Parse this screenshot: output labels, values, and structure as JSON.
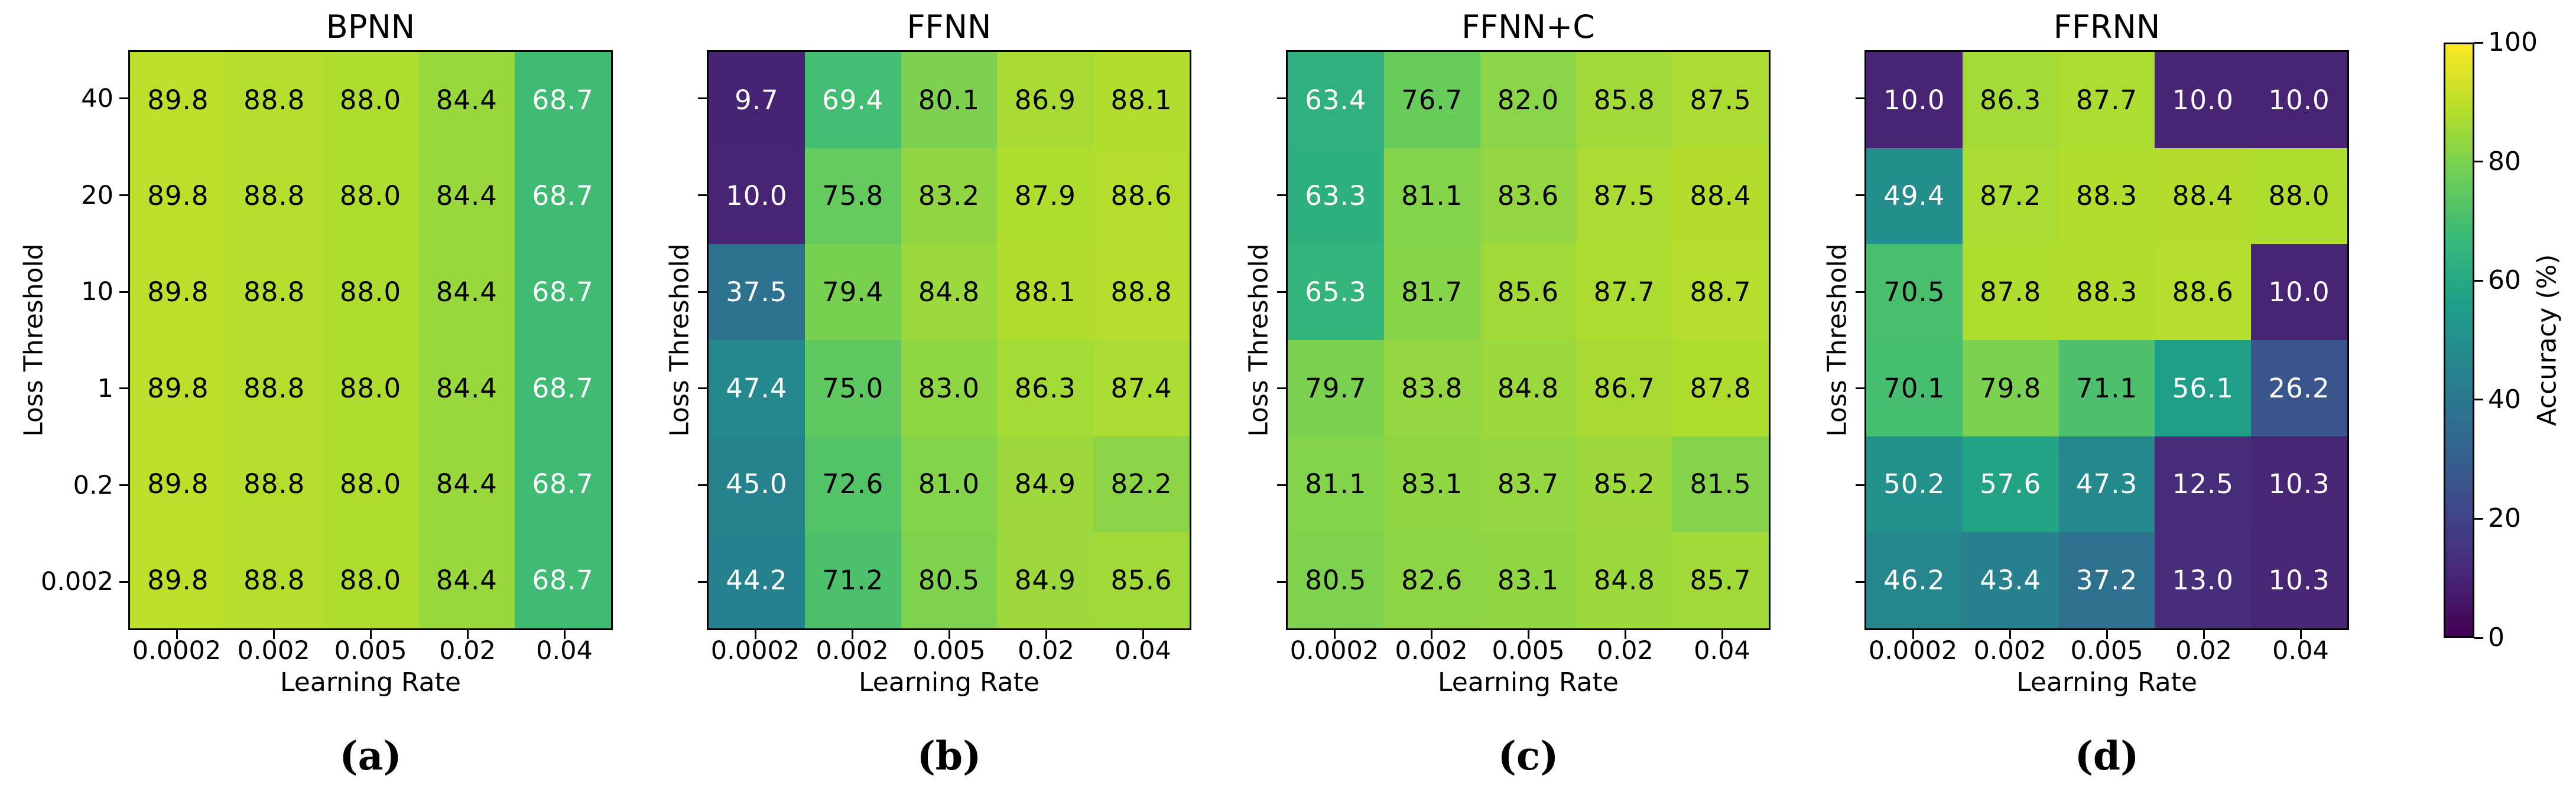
{
  "figure": {
    "x_axis_label": "Learning Rate",
    "y_axis_label": "Loss Threshold",
    "x_tick_labels": [
      "0.0002",
      "0.002",
      "0.005",
      "0.02",
      "0.04"
    ],
    "y_tick_labels": [
      "40",
      "20",
      "10",
      "1",
      "0.2",
      "0.002"
    ],
    "background_color": "#ffffff",
    "value_text": {
      "light": "#ffffff",
      "dark": "#000000",
      "white_below": 70
    }
  },
  "colorbar": {
    "label": "Accuracy (%)",
    "tick_labels": [
      "100",
      "80",
      "60",
      "40",
      "20",
      "0"
    ],
    "min": 0,
    "max": 100,
    "viridis_stops": [
      "#440154",
      "#482878",
      "#3e4a89",
      "#31688e",
      "#26828e",
      "#1f9e89",
      "#35b779",
      "#6ece58",
      "#b5de2b",
      "#fde725"
    ]
  },
  "chart_data": [
    {
      "type": "heatmap",
      "title": "BPNN",
      "caption": "(a)",
      "xlabel": "Learning Rate",
      "ylabel": "Loss Threshold",
      "x_ticks": [
        "0.0002",
        "0.002",
        "0.005",
        "0.02",
        "0.04"
      ],
      "y_ticks": [
        "40",
        "20",
        "10",
        "1",
        "0.2",
        "0.002"
      ],
      "show_y_tick_labels": true,
      "values": [
        [
          89.8,
          88.8,
          88.0,
          84.4,
          68.7
        ],
        [
          89.8,
          88.8,
          88.0,
          84.4,
          68.7
        ],
        [
          89.8,
          88.8,
          88.0,
          84.4,
          68.7
        ],
        [
          89.8,
          88.8,
          88.0,
          84.4,
          68.7
        ],
        [
          89.8,
          88.8,
          88.0,
          84.4,
          68.7
        ],
        [
          89.8,
          88.8,
          88.0,
          84.4,
          68.7
        ]
      ]
    },
    {
      "type": "heatmap",
      "title": "FFNN",
      "caption": "(b)",
      "xlabel": "Learning Rate",
      "ylabel": "Loss Threshold",
      "x_ticks": [
        "0.0002",
        "0.002",
        "0.005",
        "0.02",
        "0.04"
      ],
      "y_ticks": [
        "40",
        "20",
        "10",
        "1",
        "0.2",
        "0.002"
      ],
      "show_y_tick_labels": false,
      "values": [
        [
          9.7,
          69.4,
          80.1,
          86.9,
          88.1
        ],
        [
          10.0,
          75.8,
          83.2,
          87.9,
          88.6
        ],
        [
          37.5,
          79.4,
          84.8,
          88.1,
          88.8
        ],
        [
          47.4,
          75.0,
          83.0,
          86.3,
          87.4
        ],
        [
          45.0,
          72.6,
          81.0,
          84.9,
          82.2
        ],
        [
          44.2,
          71.2,
          80.5,
          84.9,
          85.6
        ]
      ]
    },
    {
      "type": "heatmap",
      "title": "FFNN+C",
      "caption": "(c)",
      "xlabel": "Learning Rate",
      "ylabel": "Loss Threshold",
      "x_ticks": [
        "0.0002",
        "0.002",
        "0.005",
        "0.02",
        "0.04"
      ],
      "y_ticks": [
        "40",
        "20",
        "10",
        "1",
        "0.2",
        "0.002"
      ],
      "show_y_tick_labels": false,
      "values": [
        [
          63.4,
          76.7,
          82.0,
          85.8,
          87.5
        ],
        [
          63.3,
          81.1,
          83.6,
          87.5,
          88.4
        ],
        [
          65.3,
          81.7,
          85.6,
          87.7,
          88.7
        ],
        [
          79.7,
          83.8,
          84.8,
          86.7,
          87.8
        ],
        [
          81.1,
          83.1,
          83.7,
          85.2,
          81.5
        ],
        [
          80.5,
          82.6,
          83.1,
          84.8,
          85.7
        ]
      ]
    },
    {
      "type": "heatmap",
      "title": "FFRNN",
      "caption": "(d)",
      "xlabel": "Learning Rate",
      "ylabel": "Loss Threshold",
      "x_ticks": [
        "0.0002",
        "0.002",
        "0.005",
        "0.02",
        "0.04"
      ],
      "y_ticks": [
        "40",
        "20",
        "10",
        "1",
        "0.2",
        "0.002"
      ],
      "show_y_tick_labels": false,
      "values": [
        [
          10.0,
          86.3,
          87.7,
          10.0,
          10.0
        ],
        [
          49.4,
          87.2,
          88.3,
          88.4,
          88.0
        ],
        [
          70.5,
          87.8,
          88.3,
          88.6,
          10.0
        ],
        [
          70.1,
          79.8,
          71.1,
          56.1,
          26.2
        ],
        [
          50.2,
          57.6,
          47.3,
          12.5,
          10.3
        ],
        [
          46.2,
          43.4,
          37.2,
          13.0,
          10.3
        ]
      ]
    }
  ]
}
